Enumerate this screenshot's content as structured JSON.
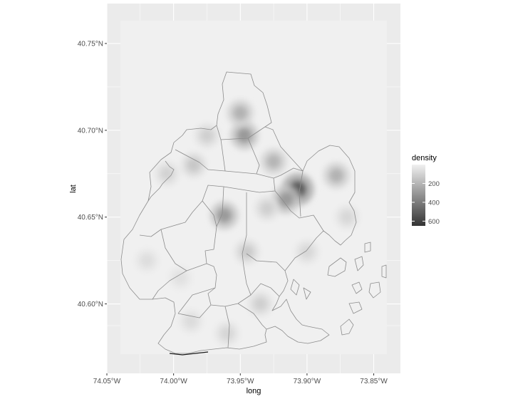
{
  "chart_data": {
    "type": "heatmap",
    "xlabel": "long",
    "ylabel": "lat",
    "xlim": [
      -74.05,
      -73.83
    ],
    "ylim": [
      40.56,
      40.773
    ],
    "x_ticks": [
      {
        "value": -74.05,
        "label": "74.05°W"
      },
      {
        "value": -74.0,
        "label": "74.00°W"
      },
      {
        "value": -73.95,
        "label": "73.95°W"
      },
      {
        "value": -73.9,
        "label": "73.90°W"
      },
      {
        "value": -73.85,
        "label": "73.85°W"
      }
    ],
    "y_ticks": [
      {
        "value": 40.6,
        "label": "40.60°N"
      },
      {
        "value": 40.65,
        "label": "40.65°N"
      },
      {
        "value": 40.7,
        "label": "40.70°N"
      },
      {
        "value": 40.75,
        "label": "40.75°N"
      }
    ],
    "grid": true,
    "legend": {
      "title": "density",
      "position": "right",
      "range": [
        0,
        650
      ],
      "ticks": [
        {
          "value": 200,
          "label": "200"
        },
        {
          "value": 400,
          "label": "400"
        },
        {
          "value": 600,
          "label": "600"
        }
      ]
    },
    "density_hotspots": [
      {
        "long": -73.907,
        "lat": 40.666,
        "density": 560
      },
      {
        "long": -73.916,
        "lat": 40.66,
        "density": 320
      },
      {
        "long": -73.947,
        "lat": 40.697,
        "density": 330
      },
      {
        "long": -73.95,
        "lat": 40.71,
        "density": 230
      },
      {
        "long": -73.962,
        "lat": 40.651,
        "density": 320
      },
      {
        "long": -73.925,
        "lat": 40.682,
        "density": 220
      },
      {
        "long": -73.878,
        "lat": 40.674,
        "density": 230
      },
      {
        "long": -73.985,
        "lat": 40.68,
        "density": 150
      },
      {
        "long": -73.975,
        "lat": 40.697,
        "density": 120
      },
      {
        "long": -74.005,
        "lat": 40.675,
        "density": 110
      },
      {
        "long": -73.945,
        "lat": 40.63,
        "density": 140
      },
      {
        "long": -73.935,
        "lat": 40.6,
        "density": 120
      },
      {
        "long": -73.96,
        "lat": 40.583,
        "density": 100
      },
      {
        "long": -73.987,
        "lat": 40.59,
        "density": 80
      },
      {
        "long": -73.87,
        "lat": 40.65,
        "density": 90
      },
      {
        "long": -74.02,
        "lat": 40.625,
        "density": 70
      },
      {
        "long": -73.995,
        "lat": 40.615,
        "density": 60
      },
      {
        "long": -73.9,
        "lat": 40.63,
        "density": 90
      },
      {
        "long": -73.93,
        "lat": 40.655,
        "density": 120
      }
    ]
  },
  "colors": {
    "panel_background": "#ebebeb",
    "grid_line": "#ffffff",
    "density_low": "#f0f0f0",
    "density_high": "#333333",
    "boundary_line": "#8c8c8c"
  }
}
